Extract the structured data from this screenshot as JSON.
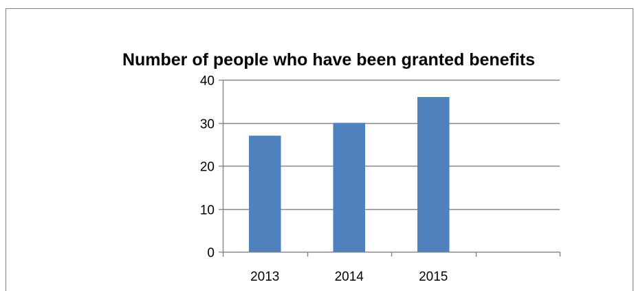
{
  "chart_data": {
    "type": "bar",
    "title": "Number of people who have been granted benefits",
    "categories": [
      "2013",
      "2014",
      "2015",
      ""
    ],
    "values": [
      27,
      30,
      36,
      null
    ],
    "xlabel": "",
    "ylabel": "",
    "ylim": [
      0,
      40
    ],
    "yticks": [
      0,
      10,
      20,
      30,
      40
    ],
    "grid": true,
    "legend": "none",
    "colors": {
      "bar": "#4F81BD",
      "grid": "#868686",
      "axis": "#868686",
      "frame": "#7f7f7f"
    }
  }
}
